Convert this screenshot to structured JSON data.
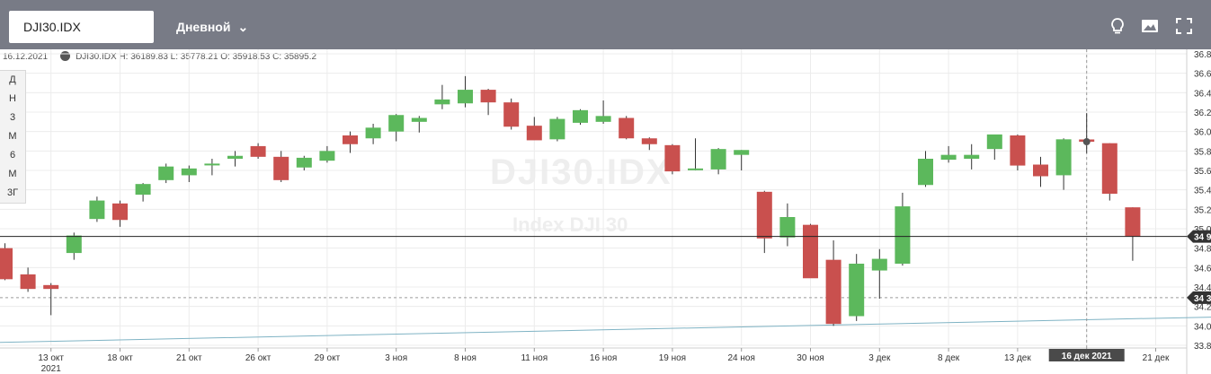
{
  "toolbar": {
    "symbol_value": "DJI30.IDX",
    "interval_label": "Дневной",
    "icons": [
      "lightbulb-icon",
      "image-icon",
      "fullscreen-icon"
    ]
  },
  "info_line": {
    "date": "16.12.2021",
    "ohlc": "DJI30.IDX  H: 36189.83 L: 35778.21 O: 35918.53 C: 35895.2"
  },
  "periods": [
    "Д",
    "Н",
    "3",
    "М",
    "6",
    "М",
    "3Г"
  ],
  "watermark": {
    "symbol": "DJI30.IDX",
    "name": "Index DJI 30"
  },
  "colors": {
    "up": "#5cb85c",
    "down": "#c9504e",
    "topbar": "#787b86"
  },
  "chart_data": {
    "type": "candlestick",
    "ylim": [
      33800,
      36850
    ],
    "y_ticks": [
      33800,
      34000,
      34200,
      34400,
      34600,
      34800,
      35000,
      35200,
      35400,
      35600,
      35800,
      36000,
      36200,
      36400,
      36600,
      36800
    ],
    "y_tick_labels": [
      "33.8",
      "34.0",
      "34.2",
      "34.4",
      "34.6",
      "34.8",
      "35.0",
      "35.2",
      "35.4",
      "35.6",
      "35.8",
      "36.0",
      "36.2",
      "36.4",
      "36.6",
      "36.8"
    ],
    "x_labels": [
      {
        "i": 2,
        "t": "13 окт"
      },
      {
        "i": 5,
        "t": "18 окт"
      },
      {
        "i": 8,
        "t": "21 окт"
      },
      {
        "i": 11,
        "t": "26 окт"
      },
      {
        "i": 14,
        "t": "29 окт"
      },
      {
        "i": 17,
        "t": "3 ноя"
      },
      {
        "i": 20,
        "t": "8 ноя"
      },
      {
        "i": 23,
        "t": "11 ноя"
      },
      {
        "i": 26,
        "t": "16 ноя"
      },
      {
        "i": 29,
        "t": "19 ноя"
      },
      {
        "i": 32,
        "t": "24 ноя"
      },
      {
        "i": 35,
        "t": "30 ноя"
      },
      {
        "i": 38,
        "t": "3 дек"
      },
      {
        "i": 41,
        "t": "8 дек"
      },
      {
        "i": 44,
        "t": "13 дек"
      },
      {
        "i": 47,
        "t": "16 дек  2021"
      },
      {
        "i": 50,
        "t": "21 дек"
      }
    ],
    "year_label": {
      "i": 2,
      "t": "2021"
    },
    "current_price_label": "34 9",
    "lower_price_label": "34 3",
    "candles": [
      {
        "o": 34800,
        "h": 34850,
        "l": 34470,
        "c": 34480
      },
      {
        "o": 34530,
        "h": 34600,
        "l": 34350,
        "c": 34380
      },
      {
        "o": 34420,
        "h": 34440,
        "l": 34110,
        "c": 34380
      },
      {
        "o": 34750,
        "h": 34960,
        "l": 34680,
        "c": 34930
      },
      {
        "o": 35100,
        "h": 35330,
        "l": 35070,
        "c": 35290
      },
      {
        "o": 35260,
        "h": 35290,
        "l": 35020,
        "c": 35090
      },
      {
        "o": 35350,
        "h": 35470,
        "l": 35280,
        "c": 35460
      },
      {
        "o": 35500,
        "h": 35670,
        "l": 35470,
        "c": 35640
      },
      {
        "o": 35550,
        "h": 35650,
        "l": 35480,
        "c": 35620
      },
      {
        "o": 35660,
        "h": 35720,
        "l": 35550,
        "c": 35670
      },
      {
        "o": 35720,
        "h": 35800,
        "l": 35640,
        "c": 35750
      },
      {
        "o": 35850,
        "h": 35880,
        "l": 35720,
        "c": 35740
      },
      {
        "o": 35740,
        "h": 35800,
        "l": 35480,
        "c": 35500
      },
      {
        "o": 35630,
        "h": 35750,
        "l": 35600,
        "c": 35730
      },
      {
        "o": 35700,
        "h": 35850,
        "l": 35680,
        "c": 35800
      },
      {
        "o": 35960,
        "h": 36000,
        "l": 35780,
        "c": 35870
      },
      {
        "o": 35930,
        "h": 36080,
        "l": 35870,
        "c": 36040
      },
      {
        "o": 36000,
        "h": 36180,
        "l": 35900,
        "c": 36170
      },
      {
        "o": 36100,
        "h": 36160,
        "l": 35990,
        "c": 36140
      },
      {
        "o": 36280,
        "h": 36480,
        "l": 36230,
        "c": 36330
      },
      {
        "o": 36290,
        "h": 36570,
        "l": 36250,
        "c": 36430
      },
      {
        "o": 36430,
        "h": 36440,
        "l": 36170,
        "c": 36300
      },
      {
        "o": 36300,
        "h": 36340,
        "l": 36020,
        "c": 36050
      },
      {
        "o": 36060,
        "h": 36150,
        "l": 35920,
        "c": 35910
      },
      {
        "o": 35920,
        "h": 36150,
        "l": 35900,
        "c": 36130
      },
      {
        "o": 36090,
        "h": 36230,
        "l": 36070,
        "c": 36220
      },
      {
        "o": 36100,
        "h": 36320,
        "l": 36080,
        "c": 36160
      },
      {
        "o": 36140,
        "h": 36160,
        "l": 35920,
        "c": 35930
      },
      {
        "o": 35930,
        "h": 35940,
        "l": 35810,
        "c": 35870
      },
      {
        "o": 35860,
        "h": 35870,
        "l": 35560,
        "c": 35590
      },
      {
        "o": 35610,
        "h": 35930,
        "l": 35600,
        "c": 35620
      },
      {
        "o": 35610,
        "h": 35830,
        "l": 35560,
        "c": 35820
      },
      {
        "o": 35760,
        "h": 35810,
        "l": 35600,
        "c": 35810
      },
      {
        "o": 35380,
        "h": 35390,
        "l": 34750,
        "c": 34900
      },
      {
        "o": 34910,
        "h": 35260,
        "l": 34820,
        "c": 35120
      },
      {
        "o": 35040,
        "h": 35050,
        "l": 34500,
        "c": 34490
      },
      {
        "o": 34680,
        "h": 34880,
        "l": 34000,
        "c": 34020
      },
      {
        "o": 34100,
        "h": 34740,
        "l": 34050,
        "c": 34640
      },
      {
        "o": 34570,
        "h": 34790,
        "l": 34280,
        "c": 34690
      },
      {
        "o": 34640,
        "h": 35370,
        "l": 34620,
        "c": 35230
      },
      {
        "o": 35450,
        "h": 35800,
        "l": 35430,
        "c": 35720
      },
      {
        "o": 35710,
        "h": 35850,
        "l": 35680,
        "c": 35760
      },
      {
        "o": 35720,
        "h": 35870,
        "l": 35610,
        "c": 35760
      },
      {
        "o": 35820,
        "h": 35960,
        "l": 35710,
        "c": 35970
      },
      {
        "o": 35960,
        "h": 35970,
        "l": 35600,
        "c": 35650
      },
      {
        "o": 35660,
        "h": 35740,
        "l": 35430,
        "c": 35540
      },
      {
        "o": 35550,
        "h": 35930,
        "l": 35400,
        "c": 35920
      },
      {
        "o": 35918.53,
        "h": 36189.83,
        "l": 35778.21,
        "c": 35895.2
      },
      {
        "o": 35880,
        "h": 35880,
        "l": 35290,
        "c": 35360
      },
      {
        "o": 35220,
        "h": 35220,
        "l": 34670,
        "c": 34920
      }
    ]
  }
}
